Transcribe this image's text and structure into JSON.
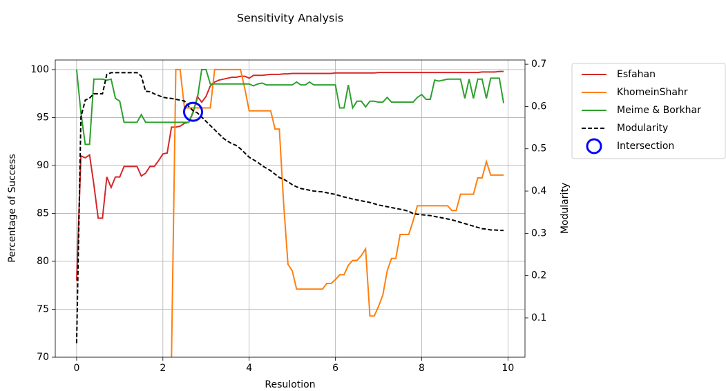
{
  "chart_data": {
    "type": "line",
    "title": "Sensitivity Analysis",
    "xlabel": "Resulotion",
    "ylabel": "Percentage of Success",
    "y2label": "Modularity",
    "xlim": [
      -0.495,
      10.395
    ],
    "ylim": [
      70,
      101
    ],
    "y2lim": [
      0.007,
      0.71
    ],
    "xticks": [
      0,
      2,
      4,
      6,
      8,
      10
    ],
    "yticks": [
      70,
      75,
      80,
      85,
      90,
      95,
      100
    ],
    "y2ticks": [
      0.1,
      0.2,
      0.3,
      0.4,
      0.5,
      0.6,
      0.7
    ],
    "grid": true,
    "legend": "outside upper right",
    "x": [
      0,
      0.1,
      0.2,
      0.3,
      0.4,
      0.5,
      0.6,
      0.7,
      0.8,
      0.9,
      1,
      1.1,
      1.2,
      1.3,
      1.4,
      1.5,
      1.6,
      1.7,
      1.8,
      1.9,
      2,
      2.1,
      2.2,
      2.3,
      2.4,
      2.5,
      2.6,
      2.7,
      2.8,
      2.9,
      3,
      3.1,
      3.2,
      3.3,
      3.4,
      3.5,
      3.6,
      3.7,
      3.8,
      3.9,
      4,
      4.1,
      4.2,
      4.3,
      4.4,
      4.5,
      4.6,
      4.7,
      4.8,
      4.9,
      5,
      5.1,
      5.2,
      5.3,
      5.4,
      5.5,
      5.6,
      5.7,
      5.8,
      5.9,
      6,
      6.1,
      6.2,
      6.3,
      6.4,
      6.5,
      6.6,
      6.7,
      6.8,
      6.9,
      7,
      7.1,
      7.2,
      7.3,
      7.4,
      7.5,
      7.6,
      7.7,
      7.8,
      7.9,
      8,
      8.1,
      8.2,
      8.3,
      8.4,
      8.5,
      8.6,
      8.7,
      8.8,
      8.9,
      9,
      9.1,
      9.2,
      9.3,
      9.4,
      9.5,
      9.6,
      9.7,
      9.8,
      9.9
    ],
    "series": [
      {
        "name": "Esfahan",
        "color": "#d62728",
        "values": [
          78,
          91,
          90.8,
          91.1,
          88,
          84.5,
          84.5,
          88.8,
          87.7,
          88.8,
          88.8,
          89.9,
          89.9,
          89.9,
          89.9,
          88.9,
          89.2,
          89.9,
          89.9,
          90.5,
          91.2,
          91.3,
          94,
          94,
          94.1,
          94.4,
          94.5,
          95.5,
          97.2,
          96.6,
          97.2,
          98.3,
          98.7,
          98.9,
          99,
          99.1,
          99.2,
          99.2,
          99.3,
          99.3,
          99.1,
          99.4,
          99.4,
          99.4,
          99.45,
          99.5,
          99.5,
          99.5,
          99.55,
          99.55,
          99.6,
          99.6,
          99.6,
          99.6,
          99.6,
          99.6,
          99.6,
          99.6,
          99.6,
          99.6,
          99.65,
          99.65,
          99.65,
          99.65,
          99.65,
          99.65,
          99.65,
          99.65,
          99.65,
          99.65,
          99.7,
          99.7,
          99.7,
          99.7,
          99.7,
          99.7,
          99.7,
          99.7,
          99.7,
          99.7,
          99.7,
          99.7,
          99.7,
          99.7,
          99.7,
          99.7,
          99.7,
          99.7,
          99.7,
          99.7,
          99.7,
          99.7,
          99.7,
          99.7,
          99.75,
          99.75,
          99.75,
          99.75,
          99.8,
          99.8
        ]
      },
      {
        "name": "KhomeinShahr",
        "color": "#ff7f0e",
        "values": [
          null,
          null,
          null,
          null,
          null,
          null,
          null,
          null,
          null,
          null,
          null,
          null,
          null,
          null,
          null,
          null,
          null,
          null,
          null,
          null,
          null,
          null,
          70,
          100,
          100,
          96,
          96,
          96,
          96,
          96,
          96,
          96,
          100,
          100,
          100,
          100,
          100,
          100,
          100,
          98,
          95.7,
          95.7,
          95.7,
          95.7,
          95.7,
          95.7,
          93.8,
          93.8,
          86,
          79.7,
          79,
          77.1,
          77.1,
          77.1,
          77.1,
          77.1,
          77.1,
          77.1,
          77.7,
          77.7,
          78.1,
          78.6,
          78.6,
          79.6,
          80.1,
          80.1,
          80.6,
          81.3,
          74.3,
          74.3,
          75.3,
          76.5,
          79,
          80.3,
          80.3,
          82.8,
          82.8,
          82.8,
          84.2,
          85.8,
          85.8,
          85.8,
          85.8,
          85.8,
          85.8,
          85.8,
          85.8,
          85.3,
          85.3,
          87,
          87,
          87,
          87,
          88.7,
          88.7,
          90.4,
          89,
          89,
          89,
          89
        ]
      },
      {
        "name": "Meime & Borkhar",
        "color": "#2ca02c",
        "values": [
          100,
          95.5,
          92.2,
          92.2,
          99,
          99,
          99,
          98.9,
          99,
          97,
          96.7,
          94.5,
          94.5,
          94.5,
          94.5,
          95.3,
          94.5,
          94.5,
          94.5,
          94.5,
          94.5,
          94.5,
          94.5,
          94.5,
          94.5,
          94.5,
          94.5,
          95.6,
          97,
          100,
          100,
          98.5,
          98.5,
          98.5,
          98.5,
          98.5,
          98.5,
          98.5,
          98.5,
          98.5,
          98.5,
          98.3,
          98.5,
          98.6,
          98.4,
          98.4,
          98.4,
          98.4,
          98.4,
          98.4,
          98.4,
          98.7,
          98.4,
          98.4,
          98.7,
          98.4,
          98.4,
          98.4,
          98.4,
          98.4,
          98.4,
          96,
          96,
          98.4,
          96,
          96.7,
          96.7,
          96.1,
          96.7,
          96.7,
          96.6,
          96.6,
          97.1,
          96.6,
          96.6,
          96.6,
          96.6,
          96.6,
          96.6,
          97.1,
          97.4,
          96.9,
          96.9,
          98.9,
          98.8,
          98.9,
          99,
          99,
          99,
          99,
          97,
          99,
          97,
          99,
          99,
          97,
          99.1,
          99.1,
          99.1,
          96.5
        ]
      },
      {
        "name": "Modularity",
        "color": "#000000",
        "dash": "dashed",
        "axis": "y2",
        "values": [
          0.04,
          0.575,
          0.615,
          0.62,
          0.63,
          0.63,
          0.63,
          0.676,
          0.68,
          0.68,
          0.68,
          0.68,
          0.68,
          0.68,
          0.68,
          0.672,
          0.636,
          0.635,
          0.63,
          0.626,
          0.622,
          0.62,
          0.619,
          0.617,
          0.615,
          0.613,
          0.6,
          0.59,
          0.585,
          0.575,
          0.565,
          0.555,
          0.545,
          0.535,
          0.525,
          0.518,
          0.512,
          0.508,
          0.5,
          0.49,
          0.48,
          0.474,
          0.468,
          0.46,
          0.454,
          0.448,
          0.44,
          0.432,
          0.428,
          0.422,
          0.415,
          0.41,
          0.406,
          0.404,
          0.402,
          0.4,
          0.399,
          0.398,
          0.396,
          0.394,
          0.392,
          0.389,
          0.386,
          0.384,
          0.381,
          0.379,
          0.377,
          0.375,
          0.373,
          0.37,
          0.367,
          0.365,
          0.363,
          0.361,
          0.359,
          0.357,
          0.355,
          0.352,
          0.347,
          0.345,
          0.344,
          0.343,
          0.342,
          0.34,
          0.338,
          0.336,
          0.334,
          0.332,
          0.329,
          0.326,
          0.323,
          0.32,
          0.317,
          0.314,
          0.311,
          0.31,
          0.308,
          0.308,
          0.307,
          0.307
        ]
      }
    ],
    "intersection": {
      "name": "Intersection",
      "x": 2.7,
      "y": 95.6,
      "color": "#0000ff"
    }
  }
}
